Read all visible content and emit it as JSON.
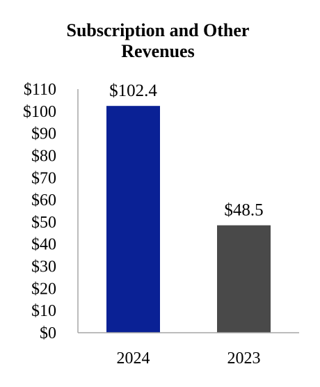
{
  "chart_data": {
    "type": "bar",
    "title": [
      "Subscription and Other",
      "Revenues"
    ],
    "categories": [
      "2024",
      "2023"
    ],
    "values": [
      102.4,
      48.5
    ],
    "data_labels": [
      "$102.4",
      "$48.5"
    ],
    "bar_colors": [
      "#0a2195",
      "#494949"
    ],
    "ylim": [
      0,
      110
    ],
    "yticks": [
      "$0",
      "$10",
      "$20",
      "$30",
      "$40",
      "$50",
      "$60",
      "$70",
      "$80",
      "$90",
      "$100",
      "$110"
    ],
    "xlabel": "",
    "ylabel": "",
    "grid": false,
    "legend": "none"
  }
}
